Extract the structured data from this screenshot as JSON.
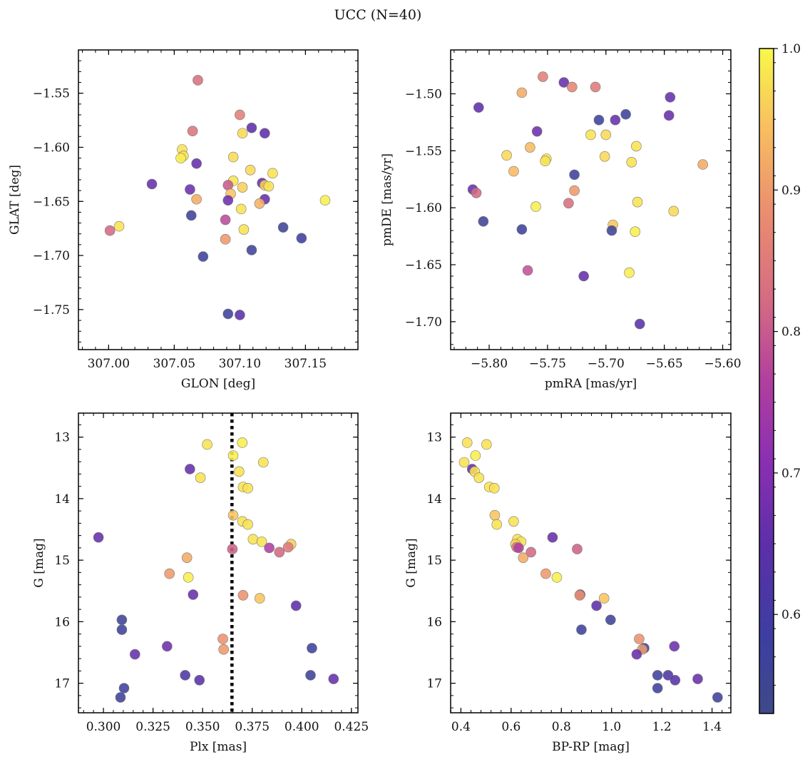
{
  "suptitle": "UCC (N=40)",
  "colorbar": {
    "min": 0.53,
    "max": 1.0,
    "ticks": [
      0.6,
      0.7,
      0.8,
      0.9,
      1.0
    ],
    "tick_labels": [
      "0.6",
      "0.7",
      "0.8",
      "0.9",
      "1.0"
    ],
    "colormap": "plasma"
  },
  "colors": {
    "marker_edge": "#777777",
    "vline": "#000000"
  },
  "chart_data": [
    {
      "type": "scatter",
      "id": "glon-glat",
      "xlabel": "GLON [deg]",
      "ylabel": "GLAT [deg]",
      "xlim": [
        306.977,
        307.19
      ],
      "ylim": [
        -1.787,
        -1.51
      ],
      "y_inverted": false,
      "xticks": [
        307.0,
        307.05,
        307.1,
        307.15
      ],
      "xtick_labels": [
        "307.00",
        "307.05",
        "307.10",
        "307.15"
      ],
      "yticks": [
        -1.55,
        -1.6,
        -1.65,
        -1.7,
        -1.75
      ],
      "ytick_labels": [
        "−1.55",
        "−1.60",
        "−1.65",
        "−1.70",
        "−1.75"
      ],
      "points": [
        {
          "x": 307.068,
          "y": -1.538,
          "c": 0.83
        },
        {
          "x": 307.1,
          "y": -1.57,
          "c": 0.86
        },
        {
          "x": 307.064,
          "y": -1.585,
          "c": 0.84
        },
        {
          "x": 307.109,
          "y": -1.582,
          "c": 0.65
        },
        {
          "x": 307.119,
          "y": -1.587,
          "c": 0.65
        },
        {
          "x": 307.102,
          "y": -1.587,
          "c": 0.97
        },
        {
          "x": 307.056,
          "y": -1.602,
          "c": 0.98
        },
        {
          "x": 307.057,
          "y": -1.608,
          "c": 0.98
        },
        {
          "x": 307.055,
          "y": -1.61,
          "c": 0.99
        },
        {
          "x": 307.095,
          "y": -1.609,
          "c": 0.97
        },
        {
          "x": 307.067,
          "y": -1.615,
          "c": 0.66
        },
        {
          "x": 307.108,
          "y": -1.621,
          "c": 0.97
        },
        {
          "x": 307.125,
          "y": -1.624,
          "c": 0.98
        },
        {
          "x": 307.095,
          "y": -1.631,
          "c": 0.98
        },
        {
          "x": 307.033,
          "y": -1.634,
          "c": 0.66
        },
        {
          "x": 307.091,
          "y": -1.635,
          "c": 0.8
        },
        {
          "x": 307.117,
          "y": -1.633,
          "c": 0.67
        },
        {
          "x": 307.119,
          "y": -1.635,
          "c": 0.96
        },
        {
          "x": 307.122,
          "y": -1.636,
          "c": 0.98
        },
        {
          "x": 307.102,
          "y": -1.637,
          "c": 0.96
        },
        {
          "x": 307.062,
          "y": -1.639,
          "c": 0.67
        },
        {
          "x": 307.093,
          "y": -1.643,
          "c": 0.95
        },
        {
          "x": 307.067,
          "y": -1.648,
          "c": 0.92
        },
        {
          "x": 307.091,
          "y": -1.649,
          "c": 0.67
        },
        {
          "x": 307.119,
          "y": -1.648,
          "c": 0.66
        },
        {
          "x": 307.115,
          "y": -1.652,
          "c": 0.93
        },
        {
          "x": 307.165,
          "y": -1.649,
          "c": 0.99
        },
        {
          "x": 307.101,
          "y": -1.657,
          "c": 0.98
        },
        {
          "x": 307.063,
          "y": -1.663,
          "c": 0.57
        },
        {
          "x": 307.089,
          "y": -1.667,
          "c": 0.78
        },
        {
          "x": 307.008,
          "y": -1.673,
          "c": 0.98
        },
        {
          "x": 307.001,
          "y": -1.677,
          "c": 0.82
        },
        {
          "x": 307.103,
          "y": -1.676,
          "c": 0.98
        },
        {
          "x": 307.133,
          "y": -1.674,
          "c": 0.56
        },
        {
          "x": 307.147,
          "y": -1.684,
          "c": 0.58
        },
        {
          "x": 307.089,
          "y": -1.685,
          "c": 0.9
        },
        {
          "x": 307.109,
          "y": -1.695,
          "c": 0.56
        },
        {
          "x": 307.072,
          "y": -1.701,
          "c": 0.57
        },
        {
          "x": 307.091,
          "y": -1.754,
          "c": 0.57
        },
        {
          "x": 307.1,
          "y": -1.755,
          "c": 0.64
        }
      ]
    },
    {
      "type": "scatter",
      "id": "pmra-pmde",
      "xlabel": "pmRA [mas/yr]",
      "ylabel": "pmDE [mas/yr]",
      "xlim": [
        -5.833,
        -5.593
      ],
      "ylim": [
        -1.7245,
        -1.4615
      ],
      "y_inverted": false,
      "xticks": [
        -5.8,
        -5.75,
        -5.7,
        -5.65,
        -5.6
      ],
      "xtick_labels": [
        "−5.80",
        "−5.75",
        "−5.70",
        "−5.65",
        "−5.60"
      ],
      "yticks": [
        -1.5,
        -1.55,
        -1.6,
        -1.65,
        -1.7
      ],
      "ytick_labels": [
        "−1.50",
        "−1.55",
        "−1.60",
        "−1.65",
        "−1.70"
      ],
      "points": [
        {
          "x": -5.754,
          "y": -1.485,
          "c": 0.86
        },
        {
          "x": -5.736,
          "y": -1.49,
          "c": 0.66
        },
        {
          "x": -5.729,
          "y": -1.494,
          "c": 0.87
        },
        {
          "x": -5.709,
          "y": -1.494,
          "c": 0.85
        },
        {
          "x": -5.772,
          "y": -1.499,
          "c": 0.92
        },
        {
          "x": -5.645,
          "y": -1.503,
          "c": 0.66
        },
        {
          "x": -5.809,
          "y": -1.512,
          "c": 0.65
        },
        {
          "x": -5.683,
          "y": -1.518,
          "c": 0.57
        },
        {
          "x": -5.646,
          "y": -1.519,
          "c": 0.66
        },
        {
          "x": -5.706,
          "y": -1.523,
          "c": 0.57
        },
        {
          "x": -5.692,
          "y": -1.523,
          "c": 0.66
        },
        {
          "x": -5.759,
          "y": -1.533,
          "c": 0.67
        },
        {
          "x": -5.713,
          "y": -1.536,
          "c": 0.98
        },
        {
          "x": -5.7,
          "y": -1.536,
          "c": 0.97
        },
        {
          "x": -5.674,
          "y": -1.546,
          "c": 0.98
        },
        {
          "x": -5.765,
          "y": -1.547,
          "c": 0.94
        },
        {
          "x": -5.785,
          "y": -1.554,
          "c": 0.97
        },
        {
          "x": -5.701,
          "y": -1.555,
          "c": 0.97
        },
        {
          "x": -5.751,
          "y": -1.557,
          "c": 0.98
        },
        {
          "x": -5.752,
          "y": -1.559,
          "c": 0.98
        },
        {
          "x": -5.678,
          "y": -1.56,
          "c": 0.98
        },
        {
          "x": -5.617,
          "y": -1.562,
          "c": 0.92
        },
        {
          "x": -5.779,
          "y": -1.568,
          "c": 0.94
        },
        {
          "x": -5.727,
          "y": -1.571,
          "c": 0.57
        },
        {
          "x": -5.814,
          "y": -1.584,
          "c": 0.66
        },
        {
          "x": -5.811,
          "y": -1.587,
          "c": 0.82
        },
        {
          "x": -5.727,
          "y": -1.585,
          "c": 0.9
        },
        {
          "x": -5.673,
          "y": -1.595,
          "c": 0.98
        },
        {
          "x": -5.732,
          "y": -1.596,
          "c": 0.83
        },
        {
          "x": -5.76,
          "y": -1.599,
          "c": 0.99
        },
        {
          "x": -5.642,
          "y": -1.603,
          "c": 0.97
        },
        {
          "x": -5.805,
          "y": -1.612,
          "c": 0.56
        },
        {
          "x": -5.694,
          "y": -1.615,
          "c": 0.95
        },
        {
          "x": -5.772,
          "y": -1.619,
          "c": 0.57
        },
        {
          "x": -5.695,
          "y": -1.62,
          "c": 0.56
        },
        {
          "x": -5.675,
          "y": -1.621,
          "c": 0.99
        },
        {
          "x": -5.767,
          "y": -1.655,
          "c": 0.79
        },
        {
          "x": -5.68,
          "y": -1.657,
          "c": 0.99
        },
        {
          "x": -5.719,
          "y": -1.66,
          "c": 0.66
        },
        {
          "x": -5.671,
          "y": -1.702,
          "c": 0.64
        }
      ]
    },
    {
      "type": "scatter",
      "id": "plx-g",
      "xlabel": "Plx [mas]",
      "ylabel": "G [mag]",
      "xlim": [
        0.2874,
        0.4283
      ],
      "ylim": [
        12.61,
        17.48
      ],
      "y_inverted": true,
      "vline": 0.3648,
      "xticks": [
        0.3,
        0.325,
        0.35,
        0.375,
        0.4,
        0.425
      ],
      "xtick_labels": [
        "0.300",
        "0.325",
        "0.350",
        "0.375",
        "0.400",
        "0.425"
      ],
      "yticks": [
        13,
        14,
        15,
        16,
        17
      ],
      "ytick_labels": [
        "13",
        "14",
        "15",
        "16",
        "17"
      ],
      "points": [
        {
          "x": 0.3523,
          "y": 13.12,
          "c": 0.98
        },
        {
          "x": 0.37,
          "y": 13.09,
          "c": 0.99
        },
        {
          "x": 0.3654,
          "y": 13.3,
          "c": 0.99
        },
        {
          "x": 0.3806,
          "y": 13.41,
          "c": 0.98
        },
        {
          "x": 0.3436,
          "y": 13.52,
          "c": 0.66
        },
        {
          "x": 0.3684,
          "y": 13.56,
          "c": 0.98
        },
        {
          "x": 0.3489,
          "y": 13.66,
          "c": 0.98
        },
        {
          "x": 0.3704,
          "y": 13.81,
          "c": 0.98
        },
        {
          "x": 0.3728,
          "y": 13.83,
          "c": 0.98
        },
        {
          "x": 0.3654,
          "y": 14.27,
          "c": 0.95
        },
        {
          "x": 0.3701,
          "y": 14.37,
          "c": 0.98
        },
        {
          "x": 0.3728,
          "y": 14.42,
          "c": 0.98
        },
        {
          "x": 0.2975,
          "y": 14.63,
          "c": 0.66
        },
        {
          "x": 0.3754,
          "y": 14.66,
          "c": 0.98
        },
        {
          "x": 0.3798,
          "y": 14.7,
          "c": 0.98
        },
        {
          "x": 0.3946,
          "y": 14.74,
          "c": 0.96
        },
        {
          "x": 0.3931,
          "y": 14.79,
          "c": 0.85
        },
        {
          "x": 0.3836,
          "y": 14.8,
          "c": 0.76
        },
        {
          "x": 0.365,
          "y": 14.82,
          "c": 0.81
        },
        {
          "x": 0.3887,
          "y": 14.87,
          "c": 0.82
        },
        {
          "x": 0.3421,
          "y": 14.96,
          "c": 0.92
        },
        {
          "x": 0.3333,
          "y": 15.22,
          "c": 0.9
        },
        {
          "x": 0.3428,
          "y": 15.28,
          "c": 0.99
        },
        {
          "x": 0.3452,
          "y": 15.56,
          "c": 0.66
        },
        {
          "x": 0.3704,
          "y": 15.57,
          "c": 0.89
        },
        {
          "x": 0.3788,
          "y": 15.62,
          "c": 0.95
        },
        {
          "x": 0.3971,
          "y": 15.74,
          "c": 0.65
        },
        {
          "x": 0.3093,
          "y": 15.97,
          "c": 0.56
        },
        {
          "x": 0.3093,
          "y": 16.13,
          "c": 0.57
        },
        {
          "x": 0.3602,
          "y": 16.28,
          "c": 0.89
        },
        {
          "x": 0.3321,
          "y": 16.4,
          "c": 0.67
        },
        {
          "x": 0.4051,
          "y": 16.43,
          "c": 0.57
        },
        {
          "x": 0.3606,
          "y": 16.45,
          "c": 0.9
        },
        {
          "x": 0.3159,
          "y": 16.53,
          "c": 0.66
        },
        {
          "x": 0.3412,
          "y": 16.87,
          "c": 0.62
        },
        {
          "x": 0.4044,
          "y": 16.87,
          "c": 0.57
        },
        {
          "x": 0.416,
          "y": 16.93,
          "c": 0.66
        },
        {
          "x": 0.3484,
          "y": 16.95,
          "c": 0.64
        },
        {
          "x": 0.3104,
          "y": 17.08,
          "c": 0.57
        },
        {
          "x": 0.3086,
          "y": 17.23,
          "c": 0.57
        }
      ]
    },
    {
      "type": "scatter",
      "id": "bprp-g",
      "xlabel": "BP-RP [mag]",
      "ylabel": "G [mag]",
      "xlim": [
        0.3591,
        1.475
      ],
      "ylim": [
        12.61,
        17.48
      ],
      "y_inverted": true,
      "xticks": [
        0.4,
        0.6,
        0.8,
        1.0,
        1.2,
        1.4
      ],
      "xtick_labels": [
        "0.4",
        "0.6",
        "0.8",
        "1.0",
        "1.2",
        "1.4"
      ],
      "yticks": [
        13,
        14,
        15,
        16,
        17
      ],
      "ytick_labels": [
        "13",
        "14",
        "15",
        "16",
        "17"
      ],
      "points": [
        {
          "x": 0.425,
          "y": 13.09,
          "c": 0.98
        },
        {
          "x": 0.502,
          "y": 13.12,
          "c": 0.98
        },
        {
          "x": 0.458,
          "y": 13.3,
          "c": 0.99
        },
        {
          "x": 0.413,
          "y": 13.41,
          "c": 0.98
        },
        {
          "x": 0.445,
          "y": 13.52,
          "c": 0.66
        },
        {
          "x": 0.455,
          "y": 13.56,
          "c": 0.98
        },
        {
          "x": 0.472,
          "y": 13.66,
          "c": 0.98
        },
        {
          "x": 0.513,
          "y": 13.81,
          "c": 0.98
        },
        {
          "x": 0.533,
          "y": 13.83,
          "c": 0.98
        },
        {
          "x": 0.535,
          "y": 14.27,
          "c": 0.95
        },
        {
          "x": 0.61,
          "y": 14.37,
          "c": 0.98
        },
        {
          "x": 0.543,
          "y": 14.42,
          "c": 0.98
        },
        {
          "x": 0.765,
          "y": 14.63,
          "c": 0.66
        },
        {
          "x": 0.625,
          "y": 14.66,
          "c": 0.98
        },
        {
          "x": 0.64,
          "y": 14.7,
          "c": 0.98
        },
        {
          "x": 0.617,
          "y": 14.74,
          "c": 0.96
        },
        {
          "x": 0.622,
          "y": 14.79,
          "c": 0.85
        },
        {
          "x": 0.63,
          "y": 14.8,
          "c": 0.76
        },
        {
          "x": 0.863,
          "y": 14.82,
          "c": 0.81
        },
        {
          "x": 0.679,
          "y": 14.87,
          "c": 0.82
        },
        {
          "x": 0.648,
          "y": 14.96,
          "c": 0.92
        },
        {
          "x": 0.738,
          "y": 15.22,
          "c": 0.9
        },
        {
          "x": 0.782,
          "y": 15.28,
          "c": 0.99
        },
        {
          "x": 0.875,
          "y": 15.56,
          "c": 0.66
        },
        {
          "x": 0.873,
          "y": 15.57,
          "c": 0.89
        },
        {
          "x": 0.97,
          "y": 15.62,
          "c": 0.95
        },
        {
          "x": 0.94,
          "y": 15.74,
          "c": 0.65
        },
        {
          "x": 0.996,
          "y": 15.97,
          "c": 0.56
        },
        {
          "x": 0.88,
          "y": 16.13,
          "c": 0.57
        },
        {
          "x": 1.11,
          "y": 16.28,
          "c": 0.89
        },
        {
          "x": 1.25,
          "y": 16.4,
          "c": 0.67
        },
        {
          "x": 1.13,
          "y": 16.43,
          "c": 0.57
        },
        {
          "x": 1.122,
          "y": 16.45,
          "c": 0.9
        },
        {
          "x": 1.1,
          "y": 16.53,
          "c": 0.66
        },
        {
          "x": 1.225,
          "y": 16.87,
          "c": 0.62
        },
        {
          "x": 1.183,
          "y": 16.87,
          "c": 0.57
        },
        {
          "x": 1.343,
          "y": 16.93,
          "c": 0.66
        },
        {
          "x": 1.253,
          "y": 16.95,
          "c": 0.64
        },
        {
          "x": 1.183,
          "y": 17.08,
          "c": 0.57
        },
        {
          "x": 1.422,
          "y": 17.23,
          "c": 0.57
        }
      ]
    }
  ]
}
